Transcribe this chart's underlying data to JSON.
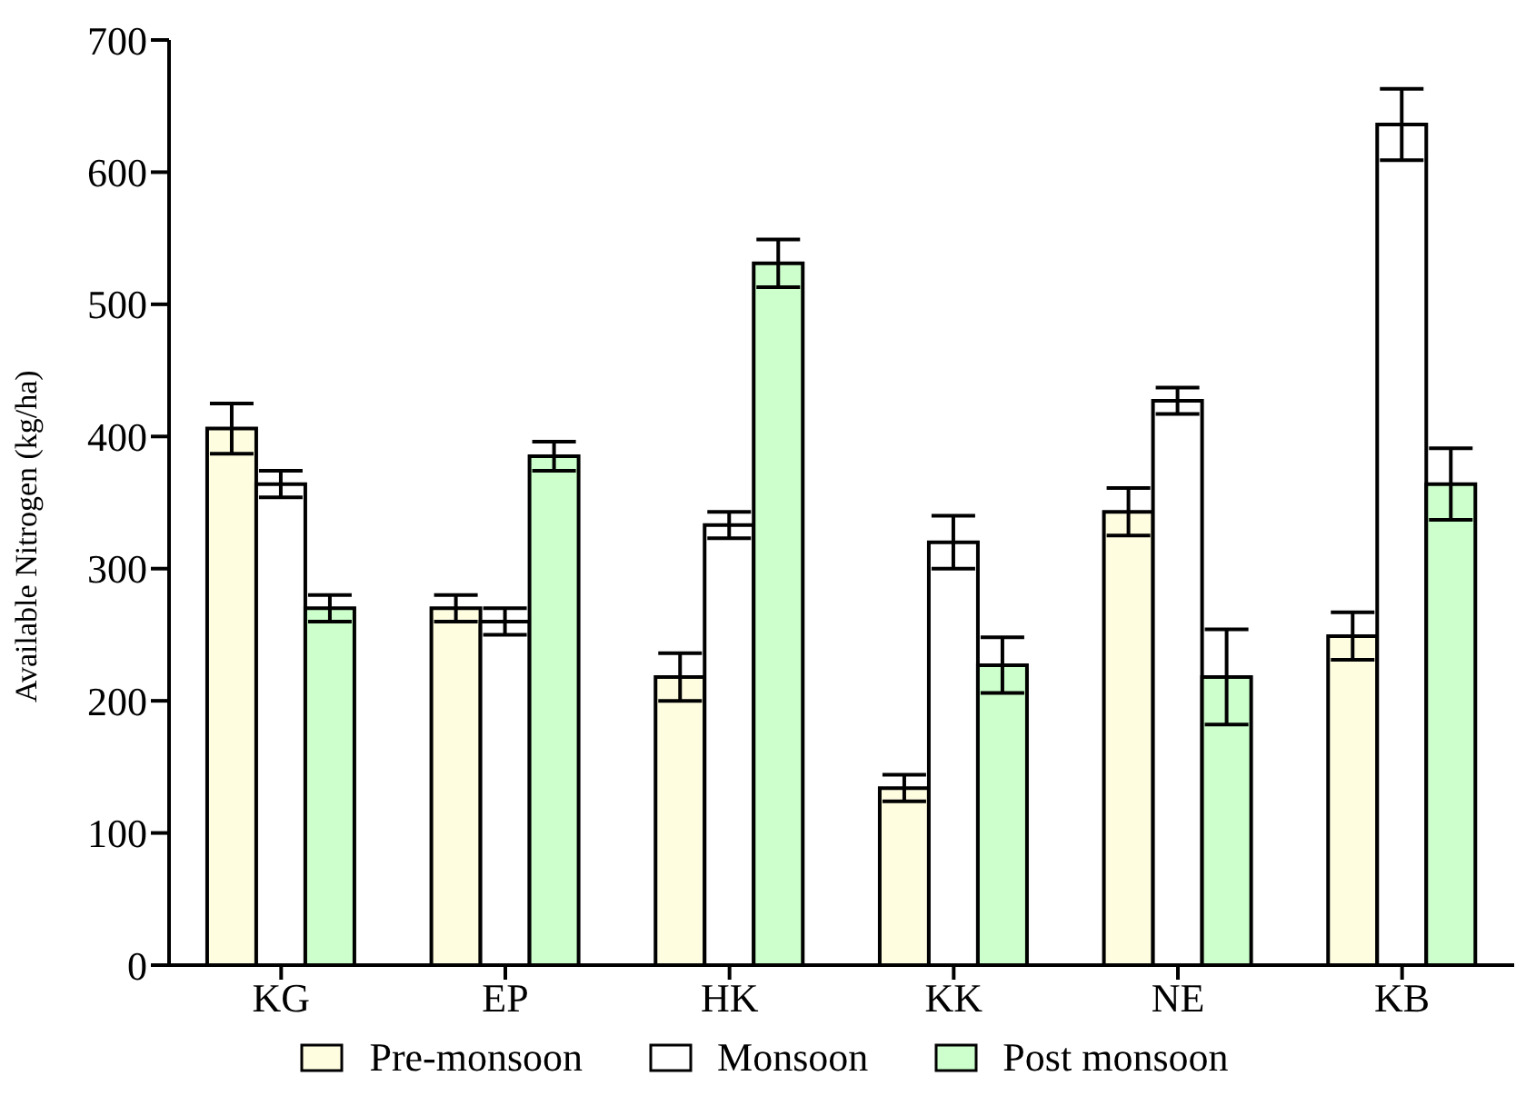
{
  "chart_data": {
    "type": "bar",
    "ylabel": "Available Nitrogen (kg/ha)",
    "categories": [
      "KG",
      "EP",
      "HK",
      "KK",
      "NE",
      "KB"
    ],
    "series": [
      {
        "name": "Pre-monsoon",
        "color": "#fffde0",
        "values": [
          406,
          270,
          218,
          134,
          343,
          249
        ],
        "errors": [
          19,
          10,
          18,
          10,
          18,
          18
        ]
      },
      {
        "name": "Monsoon",
        "color": "#ffffff",
        "values": [
          364,
          260,
          333,
          320,
          427,
          636
        ],
        "errors": [
          10,
          10,
          10,
          20,
          10,
          27
        ]
      },
      {
        "name": "Post monsoon",
        "color": "#ccffcc",
        "values": [
          270,
          385,
          531,
          227,
          218,
          364
        ],
        "errors": [
          10,
          11,
          18,
          21,
          36,
          27
        ]
      }
    ],
    "ylim": [
      0,
      700
    ],
    "yticks": [
      0,
      100,
      200,
      300,
      400,
      500,
      600,
      700
    ],
    "grid": false,
    "legend": "bottom"
  }
}
